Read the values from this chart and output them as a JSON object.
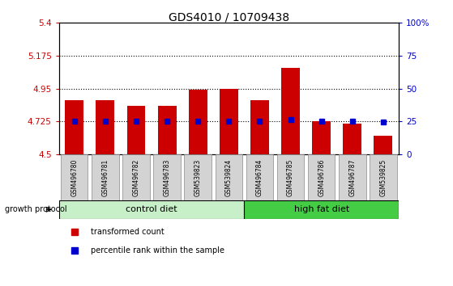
{
  "title": "GDS4010 / 10709438",
  "samples": [
    "GSM496780",
    "GSM496781",
    "GSM496782",
    "GSM496783",
    "GSM539823",
    "GSM539824",
    "GSM496784",
    "GSM496785",
    "GSM496786",
    "GSM496787",
    "GSM539825"
  ],
  "red_values": [
    4.87,
    4.87,
    4.83,
    4.83,
    4.945,
    4.95,
    4.87,
    5.09,
    4.725,
    4.71,
    4.63
  ],
  "blue_values": [
    4.725,
    4.725,
    4.725,
    4.725,
    4.73,
    4.725,
    4.725,
    4.74,
    4.725,
    4.725,
    4.72
  ],
  "ymin": 4.5,
  "ymax": 5.4,
  "yticks_left": [
    4.5,
    4.725,
    4.95,
    5.175,
    5.4
  ],
  "ytick_labels_left": [
    "4.5",
    "4.725",
    "4.95",
    "5.175",
    "5.4"
  ],
  "yticks_right_pct": [
    0,
    25,
    50,
    75,
    100
  ],
  "ytick_labels_right": [
    "0",
    "25",
    "50",
    "75",
    "100%"
  ],
  "hlines": [
    4.725,
    4.95,
    5.175
  ],
  "n_control": 6,
  "n_high_fat": 5,
  "control_color_light": "#c8f0c8",
  "high_fat_color": "#44cc44",
  "bar_color": "#CC0000",
  "dot_color": "#0000CC",
  "bar_width": 0.6,
  "xlabel_color": "#CC0000",
  "ylabel_right_color": "#0000CC",
  "label_box_color": "#D3D3D3"
}
